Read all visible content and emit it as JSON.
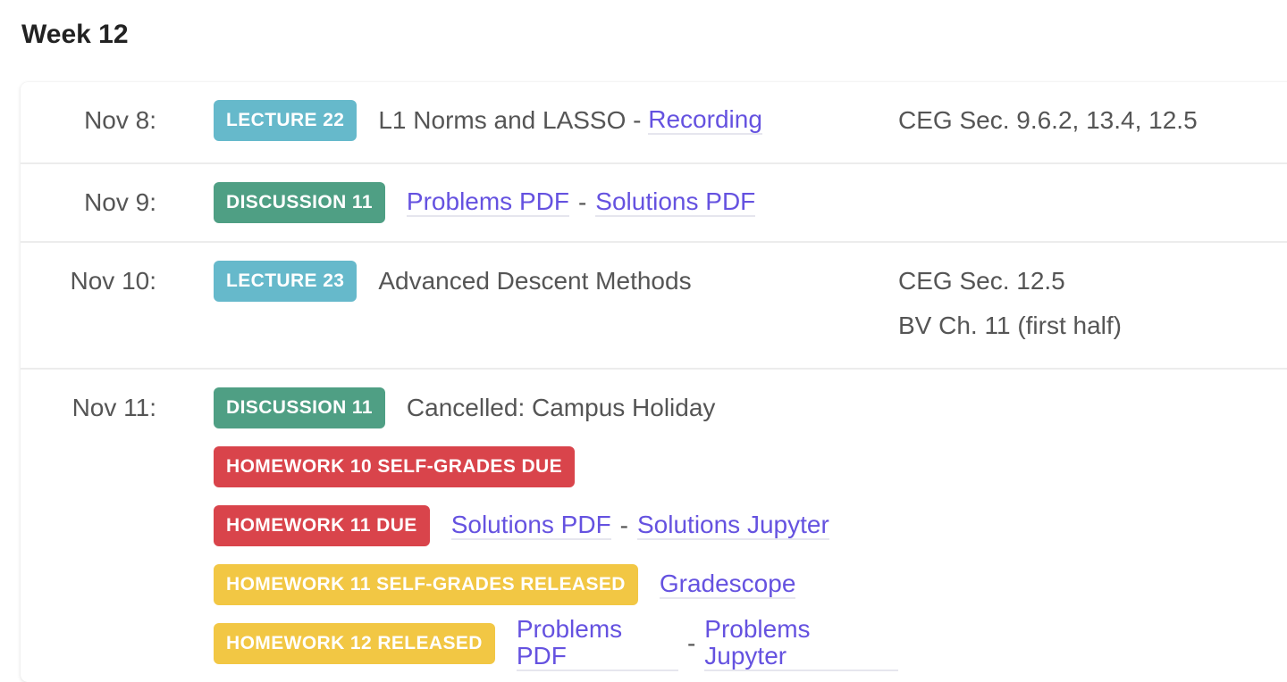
{
  "week_title": "Week 12",
  "colors": {
    "lecture": "#66b9cb",
    "discussion": "#4f9f84",
    "due": "#d9444b",
    "released": "#f2c744",
    "link": "#6552e0"
  },
  "rows": [
    {
      "date": "Nov 8:",
      "lines": [
        {
          "badge": "LECTURE 22",
          "text": "L1 Norms and LASSO - ",
          "links": [
            "Recording"
          ]
        }
      ],
      "refs": [
        "CEG Sec. 9.6.2, 13.4, 12.5"
      ]
    },
    {
      "date": "Nov 9:",
      "lines": [
        {
          "badge": "DISCUSSION 11",
          "links": [
            "Problems PDF",
            "Solutions PDF"
          ]
        }
      ]
    },
    {
      "date": "Nov 10:",
      "lines": [
        {
          "badge": "LECTURE 23",
          "text": "Advanced Descent Methods"
        }
      ],
      "refs": [
        "CEG Sec. 12.5",
        "BV Ch. 11 (first half)"
      ]
    },
    {
      "date": "Nov 11:",
      "lines": [
        {
          "badge": "DISCUSSION 11",
          "text": "Cancelled: Campus Holiday"
        },
        {
          "badge": "HOMEWORK 10 SELF-GRADES DUE"
        },
        {
          "badge": "HOMEWORK 11 DUE",
          "links": [
            "Solutions PDF",
            "Solutions Jupyter"
          ]
        },
        {
          "badge": "HOMEWORK 11 SELF-GRADES RELEASED",
          "links": [
            "Gradescope"
          ]
        },
        {
          "badge": "HOMEWORK 12 RELEASED",
          "links": [
            "Problems PDF",
            "Problems Jupyter"
          ]
        }
      ]
    }
  ],
  "separator": "-"
}
